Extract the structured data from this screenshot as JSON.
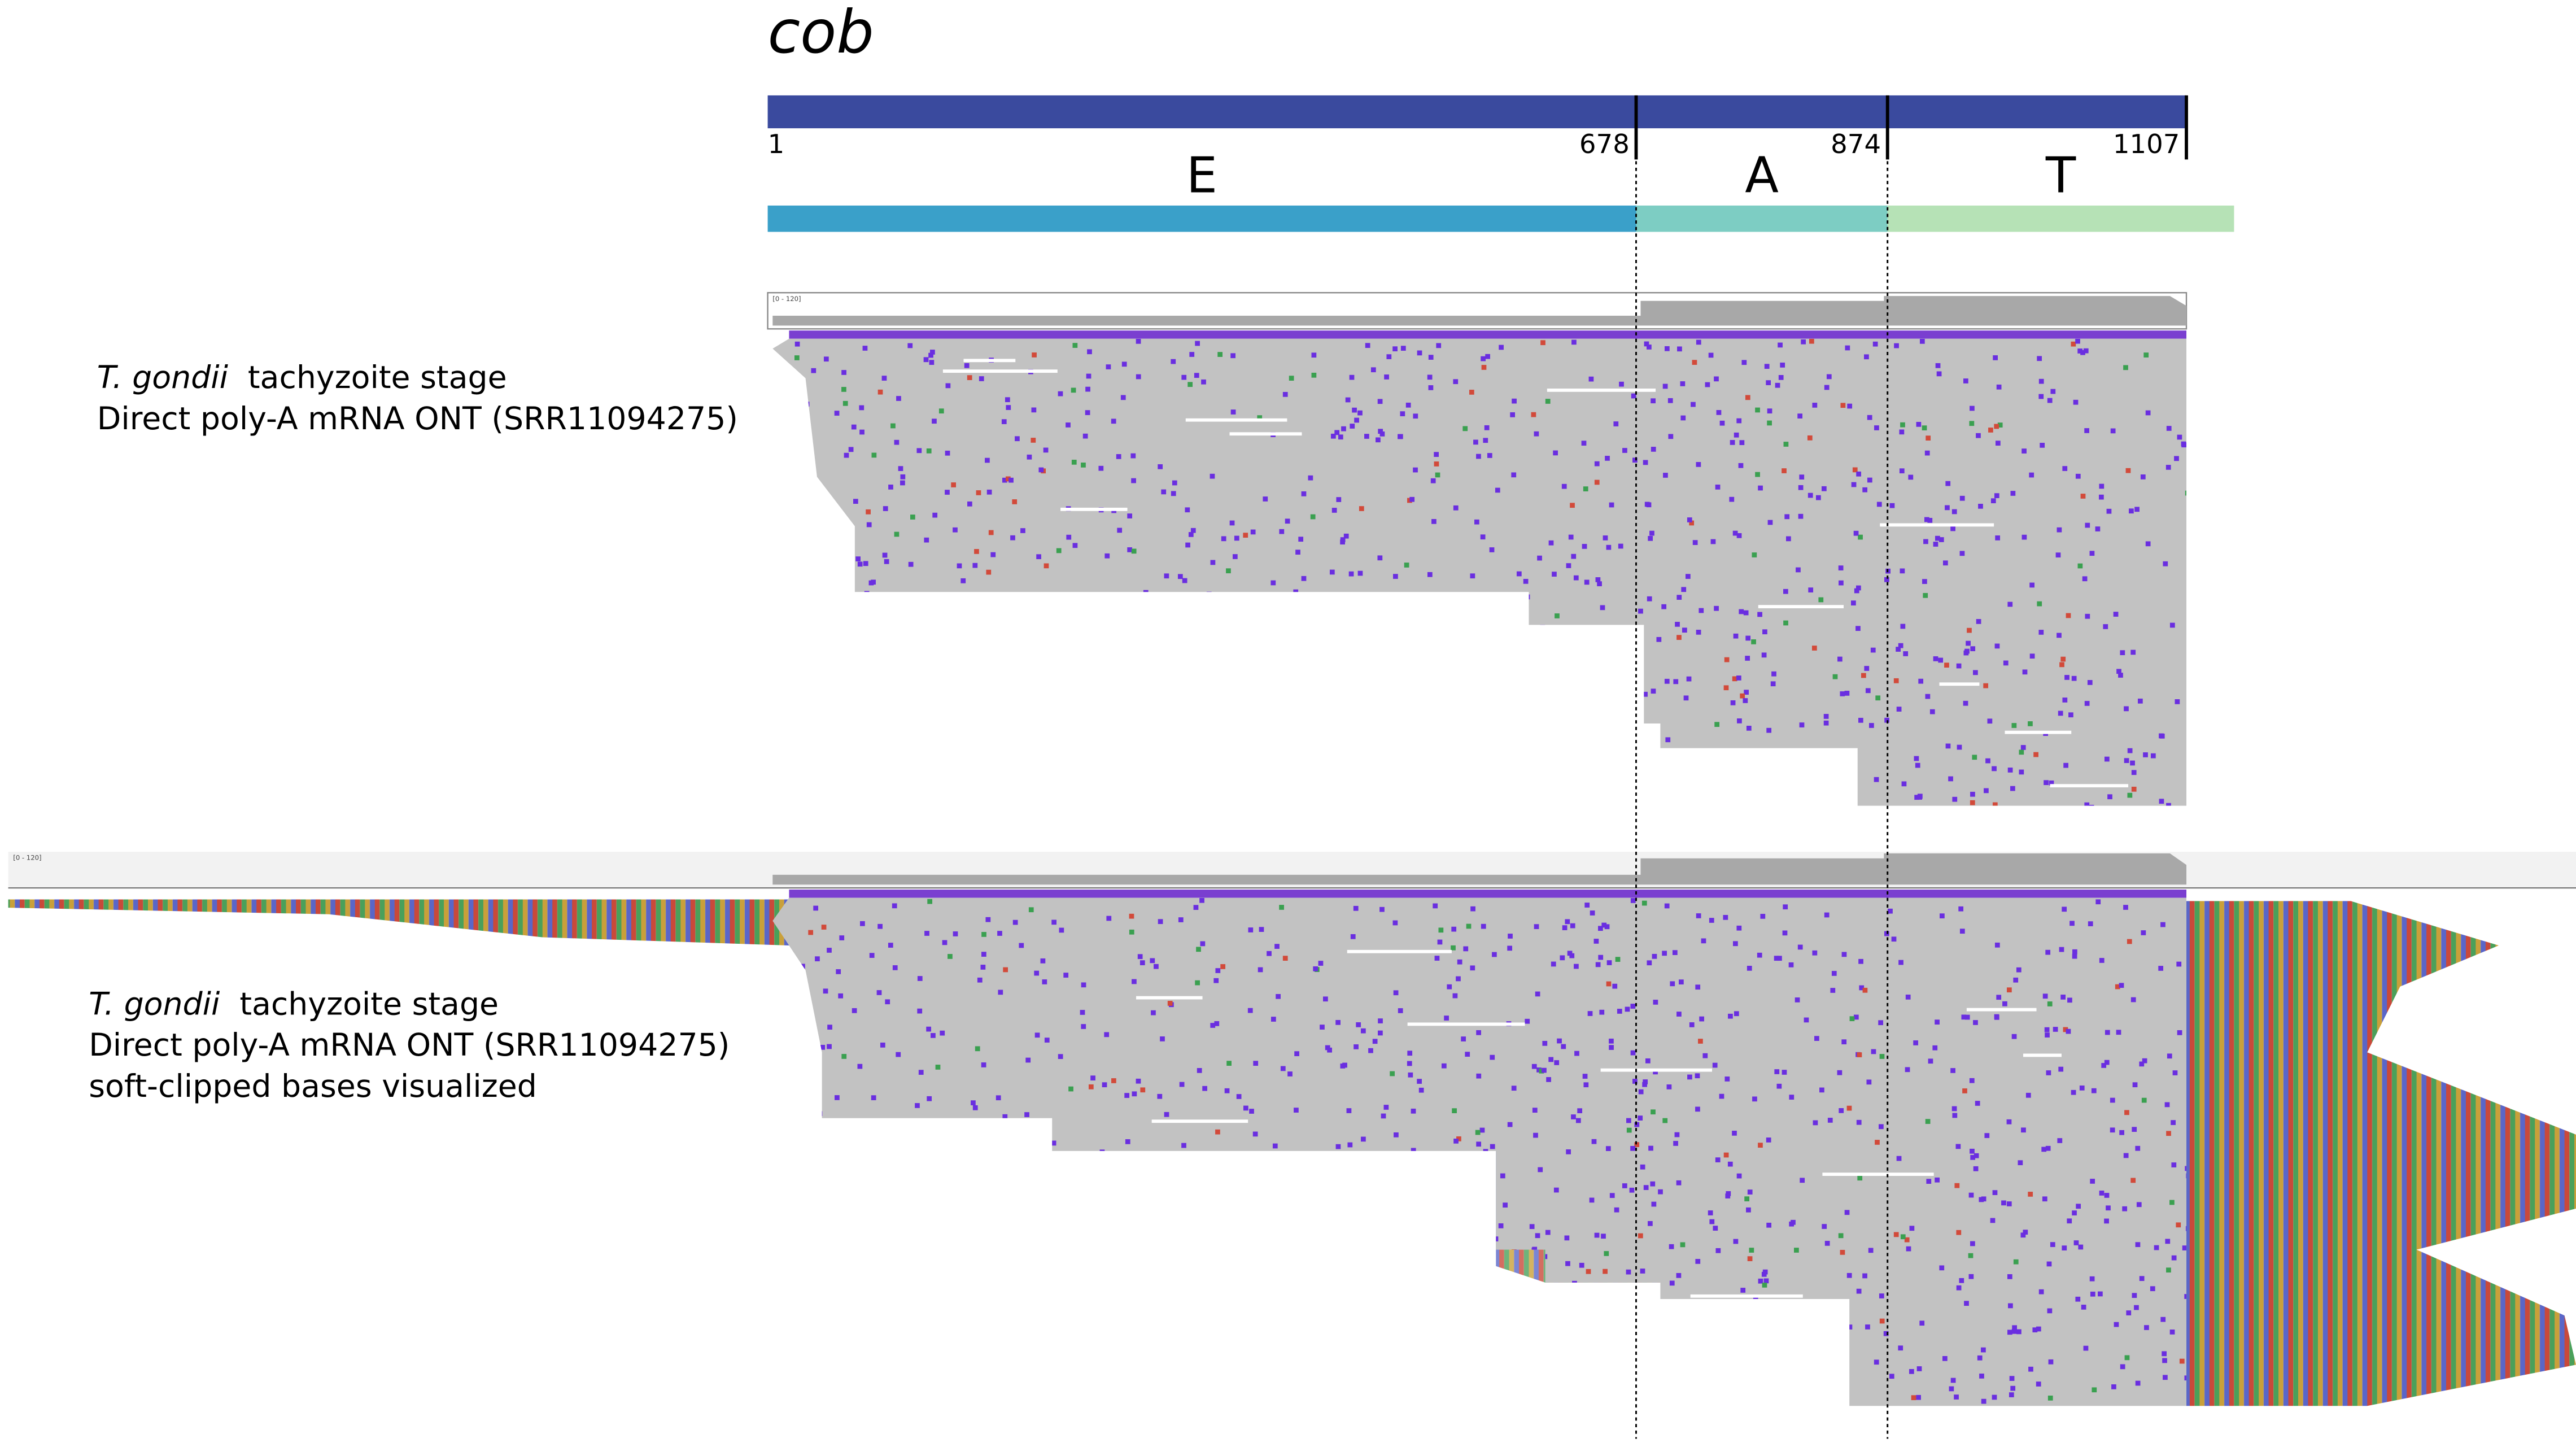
{
  "title": "cob",
  "gene_bar": {
    "ticks": [
      1,
      678,
      874,
      1107
    ]
  },
  "segments": [
    {
      "label": "E",
      "color": "#3aa0c9"
    },
    {
      "label": "A",
      "color": "#7dcdc3"
    },
    {
      "label": "T",
      "color": "#b6e2b6"
    }
  ],
  "tracks": [
    {
      "species": "T. gondii",
      "stage": "tachyzoite stage",
      "lines": [
        "Direct poly-A mRNA ONT (SRR11094275)"
      ],
      "range_label": "[0 - 120]"
    },
    {
      "species": "T. gondii",
      "stage": "tachyzoite stage",
      "lines": [
        "Direct poly-A mRNA ONT (SRR11094275)",
        "soft-clipped bases visualized"
      ],
      "range_label": "[0 - 120]"
    }
  ]
}
